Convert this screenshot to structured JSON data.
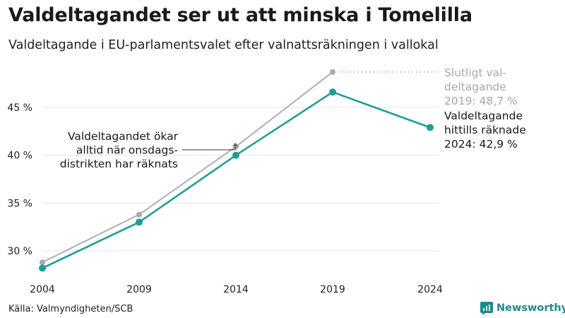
{
  "title": "Valdeltagandet ser ut att minska i Tomelilla",
  "subtitle": "Valdeltagande i EU-parlamentsvalet efter valnattsräkningen i vallokal",
  "source": "Källa: Valmyndigheten/SCB",
  "brand": "Newsworthy",
  "colors": {
    "final": "#a8a8a8",
    "preliminary": "#1f9e96",
    "brand": "#1d8a8f"
  },
  "chart_data": {
    "type": "line",
    "x": [
      "2004",
      "2009",
      "2014",
      "2019",
      "2024"
    ],
    "y_ticks": [
      "30 %",
      "35 %",
      "40 %",
      "45 %"
    ],
    "ylim": [
      27.5,
      50
    ],
    "grid": true,
    "series": [
      {
        "key": "final",
        "values": [
          28.8,
          33.8,
          40.9,
          48.7,
          null
        ]
      },
      {
        "key": "preliminary",
        "values": [
          28.2,
          33.0,
          40.0,
          46.6,
          42.9
        ]
      }
    ],
    "annotations": {
      "final_label": [
        "Slutligt val-",
        "deltagande",
        "2019: 48,7 %"
      ],
      "preliminary_label": [
        "Valdeltagande",
        "hittills räknade",
        "2024: 42,9 %"
      ],
      "note": [
        "Valdeltagandet ökar",
        "alltid när onsdags-",
        "distrikten har räknats"
      ]
    }
  }
}
